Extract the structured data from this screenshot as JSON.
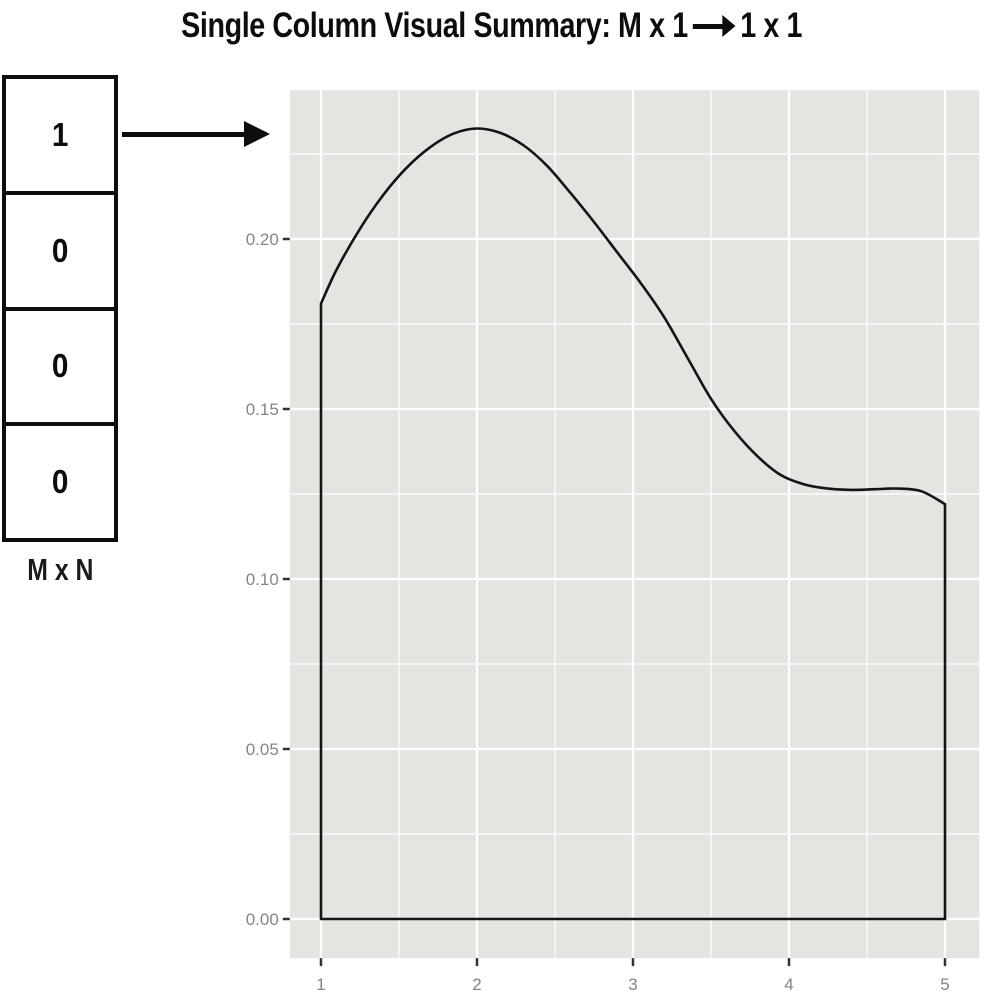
{
  "title": {
    "prefix": "Single Column Visual Summary: M x 1",
    "suffix": "1 x 1",
    "arrow_icon": "long-right-arrow"
  },
  "matrix": {
    "cells": [
      "1",
      "0",
      "0",
      "0"
    ],
    "dimension_label": "M x N"
  },
  "colors": {
    "panel_bg": "#e4e4e0",
    "grid": "#ffffff",
    "curve": "#141414",
    "tick_mark": "#333333",
    "tick_label": "#858585",
    "ink": "#0d0d0d"
  },
  "chart_data": {
    "type": "area",
    "title": "",
    "xlabel": "",
    "ylabel": "",
    "grid": true,
    "legend": false,
    "xlim": [
      0.8,
      5.22
    ],
    "ylim": [
      -0.0115,
      0.2438
    ],
    "x_tick_values": [
      1,
      2,
      3,
      4,
      5
    ],
    "x_tick_labels": [
      "1",
      "2",
      "3",
      "4",
      "5"
    ],
    "y_tick_values": [
      0.0,
      0.05,
      0.1,
      0.15,
      0.2
    ],
    "y_tick_labels": [
      "0.00",
      "0.05",
      "0.10",
      "0.15",
      "0.20"
    ],
    "x_minor_values": [
      1.5,
      2.5,
      3.5,
      4.5
    ],
    "y_minor_values": [
      0.025,
      0.075,
      0.125,
      0.175,
      0.225
    ],
    "series": [
      {
        "name": "density-outline",
        "closed_to_baseline": true,
        "x": [
          1.0,
          1.1,
          1.25,
          1.4,
          1.55,
          1.7,
          1.85,
          2.0,
          2.15,
          2.3,
          2.45,
          2.6,
          2.75,
          2.9,
          3.05,
          3.2,
          3.35,
          3.5,
          3.65,
          3.8,
          3.95,
          4.1,
          4.25,
          4.4,
          4.55,
          4.7,
          4.85,
          5.0
        ],
        "y": [
          0.181,
          0.191,
          0.203,
          0.213,
          0.221,
          0.227,
          0.231,
          0.2325,
          0.2312,
          0.2275,
          0.2215,
          0.2135,
          0.205,
          0.196,
          0.187,
          0.177,
          0.165,
          0.153,
          0.1435,
          0.136,
          0.1305,
          0.1278,
          0.1266,
          0.1262,
          0.1264,
          0.1266,
          0.1258,
          0.122
        ]
      }
    ]
  }
}
